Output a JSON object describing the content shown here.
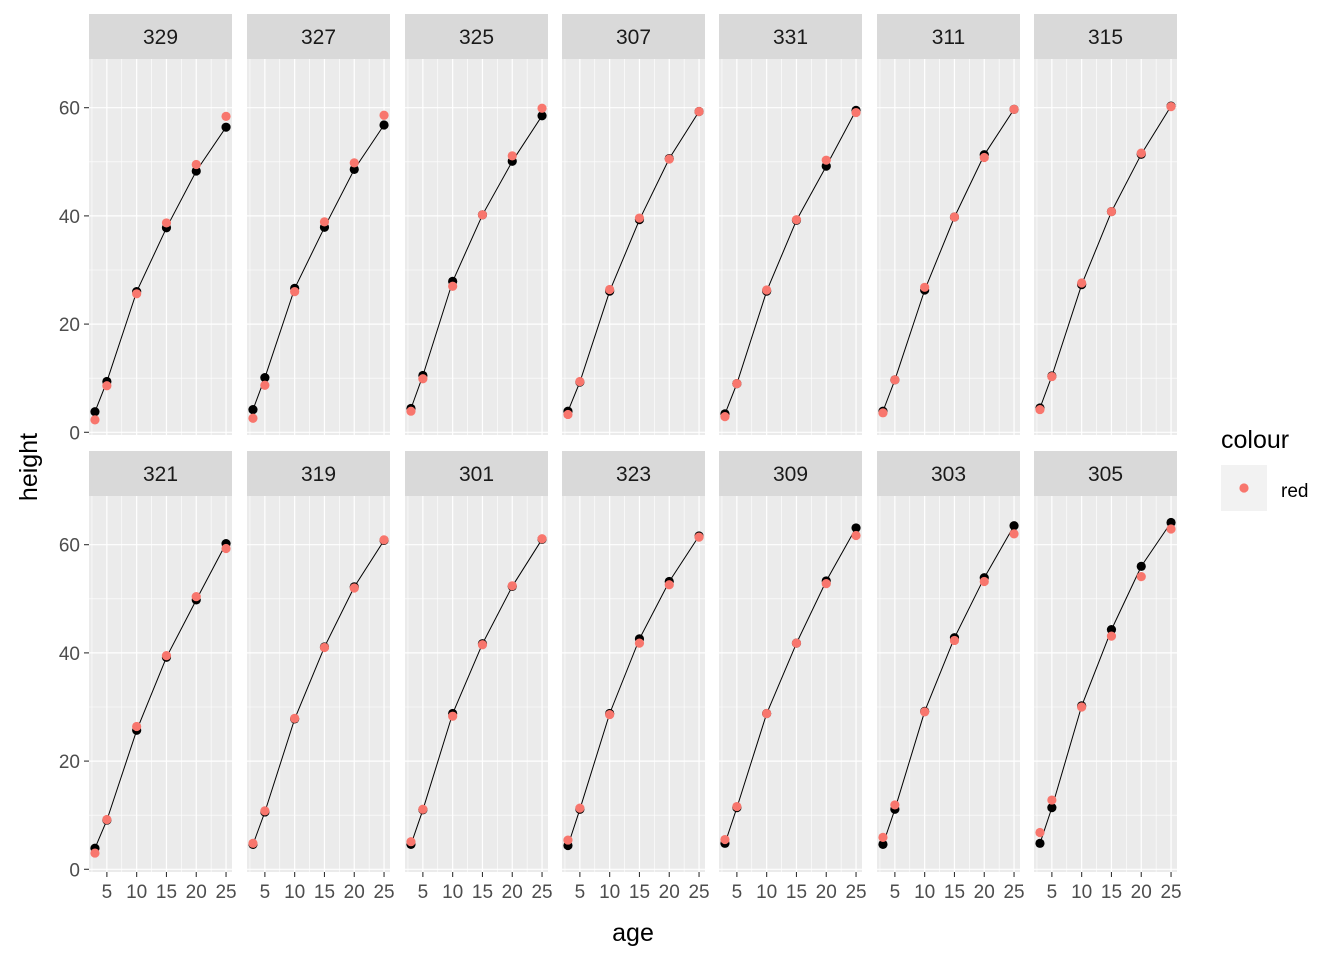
{
  "chart_data": {
    "type": "faceted-line-scatter",
    "xlabel": "age",
    "ylabel": "height",
    "xlim": [
      2.0,
      26.0
    ],
    "ylim": [
      -0.5,
      69.0
    ],
    "x_ticks": [
      5,
      10,
      15,
      20,
      25
    ],
    "y_ticks": [
      0,
      20,
      40,
      60
    ],
    "grid": true,
    "legend": {
      "title": "colour",
      "position": "right",
      "entries": [
        {
          "label": "red",
          "color": "#F8766D"
        }
      ]
    },
    "colors": {
      "observed": "#000000",
      "fitted": "#F8766D",
      "panel_bg": "#EBEBEB",
      "strip_bg": "#D9D9D9",
      "grid": "#FFFFFF"
    },
    "ages": [
      3,
      5,
      10,
      15,
      20,
      25
    ],
    "panels": [
      {
        "id": "329",
        "observed": [
          3.8,
          9.4,
          26.0,
          37.8,
          48.3,
          56.4
        ],
        "fitted": [
          2.3,
          8.6,
          25.6,
          38.7,
          49.5,
          58.4
        ]
      },
      {
        "id": "327",
        "observed": [
          4.2,
          10.1,
          26.6,
          37.9,
          48.6,
          56.8
        ],
        "fitted": [
          2.6,
          8.7,
          26.0,
          38.9,
          49.8,
          58.6
        ]
      },
      {
        "id": "325",
        "observed": [
          4.4,
          10.5,
          27.9,
          40.2,
          50.1,
          58.5
        ],
        "fitted": [
          3.9,
          9.9,
          27.0,
          40.2,
          51.1,
          59.9
        ]
      },
      {
        "id": "307",
        "observed": [
          3.9,
          9.3,
          26.1,
          39.3,
          50.6,
          59.3
        ],
        "fitted": [
          3.3,
          9.4,
          26.4,
          39.6,
          50.5,
          59.3
        ]
      },
      {
        "id": "331",
        "observed": [
          3.4,
          9.0,
          26.1,
          39.2,
          49.2,
          59.5
        ],
        "fitted": [
          2.9,
          9.0,
          26.3,
          39.3,
          50.3,
          59.1
        ]
      },
      {
        "id": "311",
        "observed": [
          3.9,
          9.7,
          26.3,
          39.8,
          51.3,
          59.7
        ],
        "fitted": [
          3.6,
          9.7,
          26.8,
          39.8,
          50.8,
          59.7
        ]
      },
      {
        "id": "315",
        "observed": [
          4.5,
          10.4,
          27.3,
          40.8,
          51.4,
          60.3
        ],
        "fitted": [
          4.2,
          10.3,
          27.6,
          40.8,
          51.6,
          60.2
        ]
      },
      {
        "id": "321",
        "observed": [
          3.9,
          9.1,
          25.7,
          39.2,
          49.8,
          60.2
        ],
        "fitted": [
          3.0,
          9.2,
          26.4,
          39.5,
          50.4,
          59.3
        ]
      },
      {
        "id": "319",
        "observed": [
          4.6,
          10.6,
          27.8,
          41.1,
          52.2,
          60.8
        ],
        "fitted": [
          4.8,
          10.8,
          27.9,
          41.0,
          52.0,
          60.9
        ]
      },
      {
        "id": "301",
        "observed": [
          4.6,
          11.0,
          28.8,
          41.7,
          52.3,
          61.0
        ],
        "fitted": [
          5.1,
          11.1,
          28.3,
          41.5,
          52.4,
          61.1
        ]
      },
      {
        "id": "323",
        "observed": [
          4.4,
          11.1,
          28.8,
          42.6,
          53.2,
          61.6
        ],
        "fitted": [
          5.4,
          11.3,
          28.6,
          41.8,
          52.6,
          61.4
        ]
      },
      {
        "id": "309",
        "observed": [
          4.8,
          11.4,
          28.8,
          41.8,
          53.3,
          63.1
        ],
        "fitted": [
          5.5,
          11.6,
          28.8,
          41.8,
          52.8,
          61.7
        ]
      },
      {
        "id": "303",
        "observed": [
          4.6,
          11.1,
          29.2,
          42.8,
          53.9,
          63.5
        ],
        "fitted": [
          5.9,
          11.9,
          29.1,
          42.3,
          53.2,
          62.0
        ]
      },
      {
        "id": "305",
        "observed": [
          4.8,
          11.4,
          30.2,
          44.3,
          56.0,
          64.1
        ],
        "fitted": [
          6.8,
          12.8,
          30.0,
          43.1,
          54.1,
          62.9
        ]
      }
    ]
  }
}
